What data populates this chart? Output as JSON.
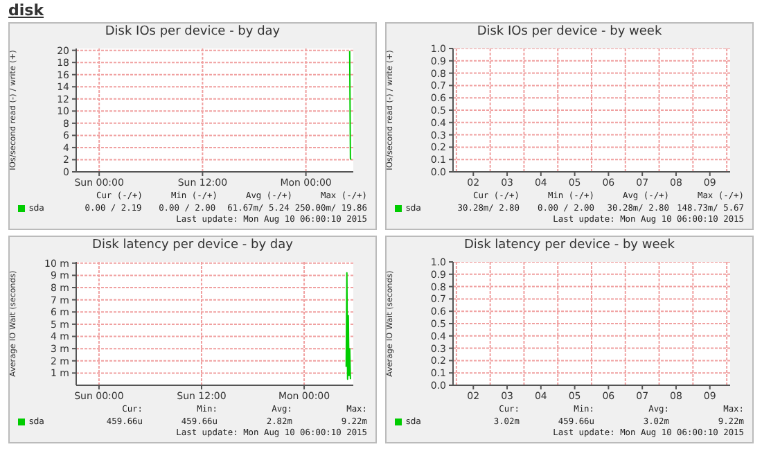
{
  "chart_data": [
    {
      "type": "other",
      "title": "disk"
    },
    {
      "type": "line",
      "title": "Disk IOs per device - by day",
      "ylabel": "IOs/second read (-) / write (+)",
      "xlim": [
        "2015-08-08T21:20",
        "2015-08-10T05:30"
      ],
      "xticks": [
        {
          "value": "2015-08-09T00:00",
          "label": "Sun 00:00"
        },
        {
          "value": "2015-08-09T12:00",
          "label": "Sun 12:00"
        },
        {
          "value": "2015-08-10T00:00",
          "label": "Mon 00:00"
        }
      ],
      "ylim": [
        0,
        20.3
      ],
      "yticks": [
        0,
        2,
        4,
        6,
        8,
        10,
        12,
        14,
        16,
        18,
        20
      ],
      "grid": true,
      "legend": "bottom left",
      "marker": "none",
      "line_style": "solid",
      "series": [
        {
          "name": "sda",
          "color": "#00cc00",
          "x": [
            "2015-08-10T05:05",
            "2015-08-10T05:10",
            "2015-08-10T05:15"
          ],
          "values": [
            19.9,
            2.2,
            2.0
          ]
        }
      ],
      "annotations": [
        "Cur (-/+)",
        "0.00 / 2.19",
        "Min (-/+)",
        "0.00 / 2.00",
        "Avg (-/+)",
        "61.67m/ 5.24",
        "Max (-/+)",
        "250.00m/ 19.86",
        "Last update: Mon Aug 10 06:00:10 2015"
      ]
    },
    {
      "type": "line",
      "title": "Disk IOs per device - by week",
      "ylabel": "IOs/second read (-) / write (+)",
      "categories": [
        "02",
        "03",
        "04",
        "05",
        "06",
        "07",
        "08",
        "09"
      ],
      "ylim": [
        0,
        1
      ],
      "yticks": [
        {
          "value": 0,
          "label": "0.0"
        },
        {
          "value": 0.1,
          "label": "0.1"
        },
        {
          "value": 0.2,
          "label": "0.2"
        },
        {
          "value": 0.3,
          "label": "0.3"
        },
        {
          "value": 0.4,
          "label": "0.4"
        },
        {
          "value": 0.5,
          "label": "0.5"
        },
        {
          "value": 0.6,
          "label": "0.6"
        },
        {
          "value": 0.7,
          "label": "0.7"
        },
        {
          "value": 0.8,
          "label": "0.8"
        },
        {
          "value": 0.9,
          "label": "0.9"
        },
        {
          "value": 1,
          "label": "1.0"
        }
      ],
      "grid": true,
      "legend": "bottom left",
      "marker": "none",
      "line_style": "solid",
      "series": [
        {
          "name": "sda",
          "color": "#00cc00",
          "values": [
            null,
            null,
            null,
            null,
            null,
            null,
            null,
            null
          ]
        }
      ],
      "annotations": [
        "Cur (-/+)",
        "30.28m/ 2.80",
        "Min (-/+)",
        "0.00 / 2.00",
        "Avg (-/+)",
        "30.28m/ 2.80",
        "Max (-/+)",
        "148.73m/ 5.67",
        "Last update: Mon Aug 10 06:00:10 2015"
      ]
    },
    {
      "type": "line",
      "title": "Disk latency per device - by day",
      "ylabel": "Average IO Wait (seconds)",
      "xlim": [
        "2015-08-08T21:20",
        "2015-08-10T05:45"
      ],
      "xticks": [
        {
          "value": "2015-08-09T00:00",
          "label": "Sun 00:00"
        },
        {
          "value": "2015-08-09T12:00",
          "label": "Sun 12:00"
        },
        {
          "value": "2015-08-10T00:00",
          "label": "Mon 00:00"
        }
      ],
      "ylim": [
        0,
        10.1
      ],
      "yticks": [
        {
          "value": 1,
          "label": "1 m"
        },
        {
          "value": 2,
          "label": "2 m"
        },
        {
          "value": 3,
          "label": "3 m"
        },
        {
          "value": 4,
          "label": "4 m"
        },
        {
          "value": 5,
          "label": "5 m"
        },
        {
          "value": 6,
          "label": "6 m"
        },
        {
          "value": 7,
          "label": "7 m"
        },
        {
          "value": 8,
          "label": "8 m"
        },
        {
          "value": 9,
          "label": "9 m"
        },
        {
          "value": 10,
          "label": "10 m"
        }
      ],
      "grid": true,
      "legend": "bottom left",
      "marker": "none",
      "line_style": "solid",
      "series": [
        {
          "name": "sda",
          "color": "#00cc00",
          "x": [
            "2015-08-10T04:55",
            "2015-08-10T05:00",
            "2015-08-10T05:05",
            "2015-08-10T05:10",
            "2015-08-10T05:15",
            "2015-08-10T05:20",
            "2015-08-10T05:25"
          ],
          "values": [
            1.5,
            9.2,
            0.5,
            5.7,
            0.8,
            3.0,
            0.5
          ]
        }
      ],
      "annotations": [
        "Cur:",
        "459.66u",
        "Min:",
        "459.66u",
        "Avg:",
        "2.82m",
        "Max:",
        "9.22m",
        "Last update: Mon Aug 10 06:00:10 2015"
      ]
    },
    {
      "type": "line",
      "title": "Disk latency per device - by week",
      "ylabel": "Average IO Wait (seconds)",
      "categories": [
        "02",
        "03",
        "04",
        "05",
        "06",
        "07",
        "08",
        "09"
      ],
      "ylim": [
        0,
        1
      ],
      "yticks": [
        {
          "value": 0,
          "label": "0.0"
        },
        {
          "value": 0.1,
          "label": "0.1"
        },
        {
          "value": 0.2,
          "label": "0.2"
        },
        {
          "value": 0.3,
          "label": "0.3"
        },
        {
          "value": 0.4,
          "label": "0.4"
        },
        {
          "value": 0.5,
          "label": "0.5"
        },
        {
          "value": 0.6,
          "label": "0.6"
        },
        {
          "value": 0.7,
          "label": "0.7"
        },
        {
          "value": 0.8,
          "label": "0.8"
        },
        {
          "value": 0.9,
          "label": "0.9"
        },
        {
          "value": 1,
          "label": "1.0"
        }
      ],
      "grid": true,
      "legend": "bottom left",
      "marker": "none",
      "line_style": "solid",
      "series": [
        {
          "name": "sda",
          "color": "#00cc00",
          "values": [
            null,
            null,
            null,
            null,
            null,
            null,
            null,
            null
          ]
        }
      ],
      "annotations": [
        "Cur:",
        "3.02m",
        "Min:",
        "459.66u",
        "Avg:",
        "3.02m",
        "Max:",
        "9.22m",
        "Last update: Mon Aug 10 06:00:10 2015"
      ]
    }
  ]
}
